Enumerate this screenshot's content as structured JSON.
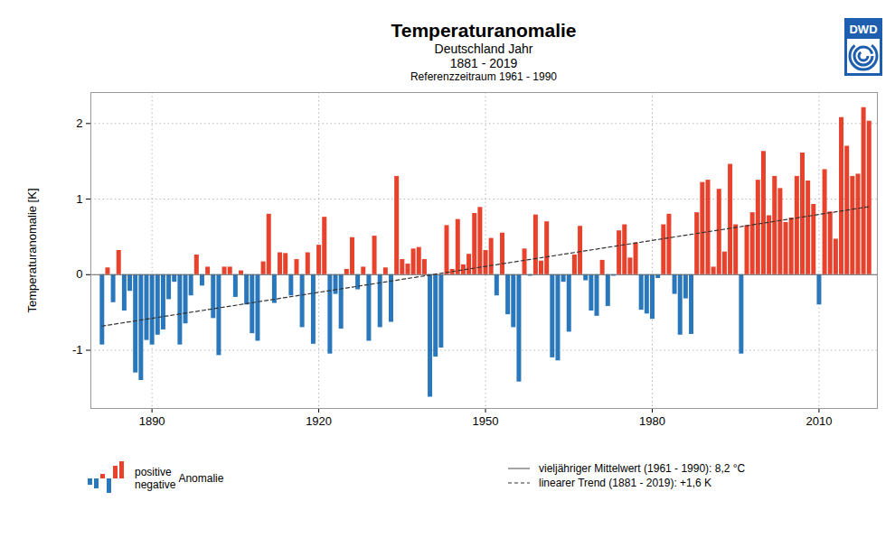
{
  "chart_data": {
    "type": "bar",
    "title": "Temperaturanomalie",
    "subtitle": [
      "Deutschland Jahr",
      "1881 - 2019",
      "Referenzzeitraum 1961 - 1990"
    ],
    "logo": "DWD",
    "y_label": "Temperaturanomalie [K]",
    "x": [
      1881,
      1882,
      1883,
      1884,
      1885,
      1886,
      1887,
      1888,
      1889,
      1890,
      1891,
      1892,
      1893,
      1894,
      1895,
      1896,
      1897,
      1898,
      1899,
      1900,
      1901,
      1902,
      1903,
      1904,
      1905,
      1906,
      1907,
      1908,
      1909,
      1910,
      1911,
      1912,
      1913,
      1914,
      1915,
      1916,
      1917,
      1918,
      1919,
      1920,
      1921,
      1922,
      1923,
      1924,
      1925,
      1926,
      1927,
      1928,
      1929,
      1930,
      1931,
      1932,
      1933,
      1934,
      1935,
      1936,
      1937,
      1938,
      1939,
      1940,
      1941,
      1942,
      1943,
      1944,
      1945,
      1946,
      1947,
      1948,
      1949,
      1950,
      1951,
      1952,
      1953,
      1954,
      1955,
      1956,
      1957,
      1958,
      1959,
      1960,
      1961,
      1962,
      1963,
      1964,
      1965,
      1966,
      1967,
      1968,
      1969,
      1970,
      1971,
      1972,
      1973,
      1974,
      1975,
      1976,
      1977,
      1978,
      1979,
      1980,
      1981,
      1982,
      1983,
      1984,
      1985,
      1986,
      1987,
      1988,
      1989,
      1990,
      1991,
      1992,
      1993,
      1994,
      1995,
      1996,
      1997,
      1998,
      1999,
      2000,
      2001,
      2002,
      2003,
      2004,
      2005,
      2006,
      2007,
      2008,
      2009,
      2010,
      2011,
      2012,
      2013,
      2014,
      2015,
      2016,
      2017,
      2018,
      2019
    ],
    "series": [
      {
        "name": "positive",
        "color": "#e8412c",
        "values": [
          null,
          0.09,
          null,
          0.32,
          null,
          null,
          null,
          null,
          null,
          null,
          null,
          null,
          null,
          null,
          null,
          null,
          null,
          0.26,
          null,
          0.1,
          null,
          null,
          0.1,
          0.1,
          null,
          0.05,
          null,
          null,
          null,
          0.17,
          0.8,
          null,
          0.29,
          0.28,
          null,
          0.2,
          null,
          0.29,
          null,
          0.39,
          0.76,
          null,
          null,
          null,
          0.07,
          0.49,
          null,
          0.1,
          null,
          0.51,
          null,
          0.09,
          null,
          1.3,
          0.2,
          0.14,
          0.34,
          0.36,
          0.2,
          null,
          null,
          null,
          0.65,
          0.07,
          0.73,
          0.13,
          0.27,
          0.81,
          0.89,
          0.32,
          0.48,
          null,
          0.55,
          null,
          null,
          null,
          0.34,
          null,
          0.79,
          0.18,
          0.7,
          null,
          null,
          null,
          null,
          0.26,
          0.64,
          null,
          null,
          null,
          0.19,
          null,
          null,
          0.58,
          0.66,
          0.22,
          0.42,
          null,
          null,
          null,
          null,
          0.66,
          0.8,
          null,
          null,
          null,
          null,
          0.82,
          1.22,
          1.25,
          0.1,
          1.13,
          0.3,
          1.46,
          0.66,
          null,
          0.65,
          0.82,
          1.25,
          1.63,
          0.78,
          1.3,
          1.14,
          0.69,
          0.75,
          1.3,
          1.61,
          1.24,
          0.93,
          null,
          1.39,
          0.83,
          0.47,
          2.08,
          1.7,
          1.3,
          1.33,
          2.21,
          2.03
        ]
      },
      {
        "name": "negative",
        "color": "#2a78bb",
        "values": [
          -0.93,
          null,
          -0.37,
          null,
          -0.48,
          -0.22,
          -1.3,
          -1.4,
          -0.87,
          -0.93,
          -0.8,
          -0.73,
          -0.33,
          -0.1,
          -0.93,
          -0.65,
          -0.28,
          null,
          -0.15,
          null,
          -0.58,
          -1.07,
          null,
          null,
          -0.3,
          null,
          -0.4,
          -0.78,
          -0.88,
          null,
          null,
          -0.38,
          null,
          null,
          -0.28,
          null,
          -0.7,
          null,
          -0.92,
          null,
          null,
          -1.05,
          -0.26,
          -0.72,
          null,
          null,
          -0.2,
          null,
          -0.88,
          null,
          -0.7,
          null,
          -0.63,
          null,
          null,
          null,
          null,
          null,
          null,
          -1.62,
          -1.09,
          -0.97,
          null,
          null,
          null,
          null,
          null,
          null,
          null,
          null,
          null,
          -0.28,
          null,
          -0.53,
          -0.7,
          -1.42,
          null,
          -0.02,
          null,
          null,
          null,
          -1.1,
          -1.14,
          -0.1,
          -0.76,
          null,
          null,
          -0.08,
          -0.48,
          -0.55,
          null,
          -0.42,
          -0.02,
          null,
          null,
          null,
          null,
          -0.47,
          -0.52,
          -0.59,
          -0.05,
          null,
          null,
          -0.26,
          -0.8,
          -0.32,
          -0.79,
          null,
          null,
          null,
          null,
          null,
          null,
          null,
          null,
          -1.05,
          null,
          null,
          null,
          null,
          null,
          null,
          null,
          null,
          null,
          null,
          null,
          null,
          null,
          -0.4,
          null,
          null,
          null,
          null,
          null,
          null,
          null,
          null,
          null
        ]
      }
    ],
    "legend_title": "Anomalie",
    "reference_line": {
      "label": "vieljähriger Mittelwert (1961 - 1990): 8,2 °C",
      "value": 0
    },
    "trend": {
      "label": "linearer Trend (1881 - 2019): +1,6 K",
      "x": [
        1881,
        2019
      ],
      "values": [
        -0.68,
        0.9
      ]
    },
    "xlim": [
      1879,
      2020.5
    ],
    "xticks": [
      1890,
      1920,
      1950,
      1980,
      2010
    ],
    "ylim": [
      -1.77,
      2.41
    ],
    "yticks": [
      -1,
      0,
      1,
      2
    ],
    "grid": true,
    "legend": "bottom"
  }
}
